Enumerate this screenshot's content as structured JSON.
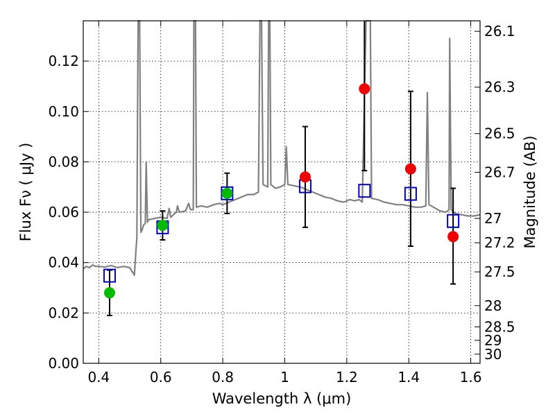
{
  "chart_data": {
    "type": "scatter",
    "title": "",
    "xlabel": "Wavelength  λ (μm)",
    "ylabel": "Flux  Fν  ( μJy )",
    "y2label": "Magnitude (AB)",
    "xlim": [
      0.35,
      1.63
    ],
    "ylim": [
      0.0,
      0.136
    ],
    "grid": true,
    "x_ticks": [
      "0.4",
      "0.6",
      "0.8",
      "1",
      "1.2",
      "1.4",
      "1.6"
    ],
    "x_tick_values": [
      0.4,
      0.6,
      0.8,
      1.0,
      1.2,
      1.4,
      1.6
    ],
    "y_ticks": [
      "0.00",
      "0.02",
      "0.04",
      "0.06",
      "0.08",
      "0.10",
      "0.12"
    ],
    "y_tick_values": [
      0.0,
      0.02,
      0.04,
      0.06,
      0.08,
      0.1,
      0.12
    ],
    "y2_ticks": [
      "26.1",
      "26.3",
      "26.5",
      "26.7",
      "27",
      "27.2",
      "27.5",
      "28",
      "28.5",
      "29",
      "30"
    ],
    "y2_tick_values": [
      26.1,
      26.3,
      26.5,
      26.7,
      27.0,
      27.2,
      27.5,
      28.0,
      28.5,
      29.0,
      30.0
    ],
    "colors": {
      "model": "#808080",
      "green": "#00bb00",
      "red": "#ee0000",
      "box": "#0000cc",
      "errorbar": "#000000"
    },
    "series": [
      {
        "marker": "circle",
        "color": "#00bb00",
        "points": [
          {
            "x": 0.435,
            "y": 0.028,
            "ylo": 0.019,
            "yhi": 0.037
          },
          {
            "x": 0.606,
            "y": 0.0548,
            "ylo": 0.049,
            "yhi": 0.0605
          },
          {
            "x": 0.814,
            "y": 0.0675,
            "ylo": 0.0595,
            "yhi": 0.0755
          }
        ]
      },
      {
        "marker": "circle",
        "color": "#ee0000",
        "points": [
          {
            "x": 1.066,
            "y": 0.074,
            "ylo": 0.054,
            "yhi": 0.094
          },
          {
            "x": 1.257,
            "y": 0.109,
            "ylo": 0.0765,
            "yhi": 0.14
          },
          {
            "x": 1.406,
            "y": 0.0772,
            "ylo": 0.0465,
            "yhi": 0.108
          },
          {
            "x": 1.543,
            "y": 0.0503,
            "ylo": 0.0315,
            "yhi": 0.0695
          }
        ]
      },
      {
        "marker": "square",
        "color": "#0000cc",
        "points": [
          {
            "x": 0.435,
            "y": 0.0348
          },
          {
            "x": 0.606,
            "y": 0.054
          },
          {
            "x": 0.814,
            "y": 0.0675
          },
          {
            "x": 1.066,
            "y": 0.0703
          },
          {
            "x": 1.257,
            "y": 0.0685
          },
          {
            "x": 1.406,
            "y": 0.0673
          },
          {
            "x": 1.543,
            "y": 0.0565
          }
        ]
      },
      {
        "marker": "line",
        "color": "#808080",
        "points": [
          [
            0.35,
            0.0375
          ],
          [
            0.36,
            0.0385
          ],
          [
            0.37,
            0.038
          ],
          [
            0.38,
            0.039
          ],
          [
            0.39,
            0.0385
          ],
          [
            0.4,
            0.0385
          ],
          [
            0.42,
            0.0382
          ],
          [
            0.44,
            0.0388
          ],
          [
            0.46,
            0.038
          ],
          [
            0.48,
            0.0385
          ],
          [
            0.5,
            0.038
          ],
          [
            0.51,
            0.036
          ],
          [
            0.515,
            0.035
          ],
          [
            0.52,
            0.045
          ],
          [
            0.523,
            0.05
          ],
          [
            0.527,
            0.136
          ],
          [
            0.532,
            0.136
          ],
          [
            0.536,
            0.052
          ],
          [
            0.54,
            0.053
          ],
          [
            0.545,
            0.055
          ],
          [
            0.55,
            0.0555
          ],
          [
            0.553,
            0.08
          ],
          [
            0.557,
            0.056
          ],
          [
            0.56,
            0.057
          ],
          [
            0.58,
            0.0575
          ],
          [
            0.6,
            0.058
          ],
          [
            0.62,
            0.0575
          ],
          [
            0.627,
            0.0615
          ],
          [
            0.632,
            0.058
          ],
          [
            0.65,
            0.06
          ],
          [
            0.654,
            0.0625
          ],
          [
            0.66,
            0.06
          ],
          [
            0.68,
            0.0605
          ],
          [
            0.69,
            0.0635
          ],
          [
            0.696,
            0.061
          ],
          [
            0.705,
            0.061
          ],
          [
            0.707,
            0.136
          ],
          [
            0.712,
            0.136
          ],
          [
            0.715,
            0.062
          ],
          [
            0.73,
            0.0625
          ],
          [
            0.75,
            0.062
          ],
          [
            0.77,
            0.063
          ],
          [
            0.79,
            0.0635
          ],
          [
            0.8,
            0.063
          ],
          [
            0.82,
            0.064
          ],
          [
            0.84,
            0.065
          ],
          [
            0.86,
            0.066
          ],
          [
            0.88,
            0.067
          ],
          [
            0.9,
            0.067
          ],
          [
            0.915,
            0.068
          ],
          [
            0.92,
            0.136
          ],
          [
            0.925,
            0.136
          ],
          [
            0.93,
            0.071
          ],
          [
            0.945,
            0.07
          ],
          [
            0.948,
            0.136
          ],
          [
            0.952,
            0.136
          ],
          [
            0.955,
            0.071
          ],
          [
            0.97,
            0.0695
          ],
          [
            0.985,
            0.07
          ],
          [
            1.0,
            0.071
          ],
          [
            1.005,
            0.086
          ],
          [
            1.01,
            0.071
          ],
          [
            1.03,
            0.0705
          ],
          [
            1.05,
            0.07
          ],
          [
            1.07,
            0.069
          ],
          [
            1.09,
            0.068
          ],
          [
            1.11,
            0.067
          ],
          [
            1.13,
            0.066
          ],
          [
            1.15,
            0.0655
          ],
          [
            1.17,
            0.0645
          ],
          [
            1.19,
            0.064
          ],
          [
            1.21,
            0.065
          ],
          [
            1.225,
            0.0645
          ],
          [
            1.24,
            0.065
          ],
          [
            1.25,
            0.064
          ],
          [
            1.262,
            0.136
          ],
          [
            1.276,
            0.136
          ],
          [
            1.28,
            0.0655
          ],
          [
            1.3,
            0.065
          ],
          [
            1.32,
            0.064
          ],
          [
            1.34,
            0.0635
          ],
          [
            1.36,
            0.063
          ],
          [
            1.38,
            0.063
          ],
          [
            1.4,
            0.0625
          ],
          [
            1.42,
            0.062
          ],
          [
            1.44,
            0.062
          ],
          [
            1.455,
            0.0625
          ],
          [
            1.46,
            0.1075
          ],
          [
            1.465,
            0.063
          ],
          [
            1.48,
            0.062
          ],
          [
            1.5,
            0.0605
          ],
          [
            1.52,
            0.06
          ],
          [
            1.53,
            0.061
          ],
          [
            1.532,
            0.129
          ],
          [
            1.537,
            0.061
          ],
          [
            1.55,
            0.0595
          ],
          [
            1.57,
            0.059
          ],
          [
            1.59,
            0.0585
          ],
          [
            1.61,
            0.0585
          ],
          [
            1.63,
            0.059
          ]
        ]
      }
    ]
  }
}
